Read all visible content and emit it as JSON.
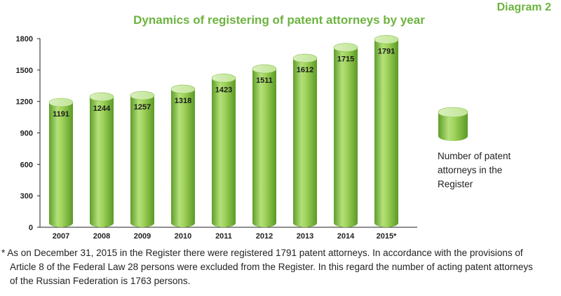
{
  "diagram_label": "Diagram 2",
  "chart_data": {
    "type": "bar",
    "title": "Dynamics of registering of patent attorneys by year",
    "categories": [
      "2007",
      "2008",
      "2009",
      "2010",
      "2011",
      "2012",
      "2013",
      "2014",
      "2015*"
    ],
    "series": [
      {
        "name": "Number of patent attorneys in the Register",
        "values": [
          1191,
          1244,
          1257,
          1318,
          1423,
          1511,
          1612,
          1715,
          1791
        ]
      }
    ],
    "ylim": [
      0,
      1800
    ],
    "yticks": [
      0,
      300,
      600,
      900,
      1200,
      1500,
      1800
    ],
    "xlabel": "",
    "ylabel": "",
    "grid": false,
    "legend_position": "right",
    "bar_style": "cylinder",
    "color": "#8dc63f"
  },
  "legend": {
    "lines": [
      "Number of patent",
      "attorneys in the",
      "Register"
    ]
  },
  "footnote": {
    "lines": [
      "* As on December 31, 2015 in the Register there were registered 1791 patent attorneys. In accordance with the provisions of",
      "Article 8 of the Federal Law 28 persons were excluded from the Register. In this regard the number of acting patent attorneys",
      "of the Russian Federation is 1763 persons."
    ]
  }
}
